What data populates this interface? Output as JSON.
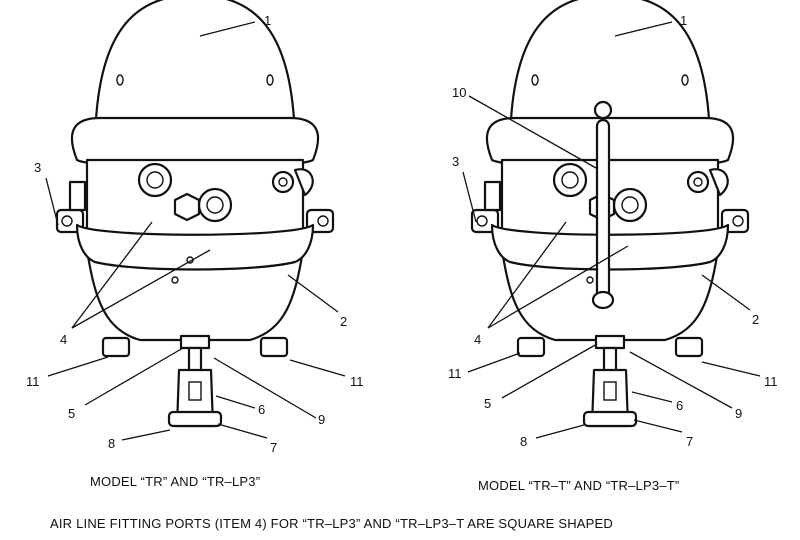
{
  "figure": {
    "left": {
      "model_caption": "MODEL “TR” AND “TR–LP3”",
      "callouts": {
        "c1": "1",
        "c2": "2",
        "c3": "3",
        "c4": "4",
        "c5": "5",
        "c6": "6",
        "c7": "7",
        "c8": "8",
        "c9": "9",
        "c11a": "11",
        "c11b": "11"
      }
    },
    "right": {
      "model_caption": "MODEL “TR–T” AND “TR–LP3–T”",
      "callouts": {
        "c1": "1",
        "c2": "2",
        "c3": "3",
        "c4": "4",
        "c5": "5",
        "c6": "6",
        "c7": "7",
        "c8": "8",
        "c9": "9",
        "c10": "10",
        "c11a": "11",
        "c11b": "11"
      }
    },
    "footnote": "AIR LINE FITTING PORTS (ITEM 4) FOR “TR–LP3” AND “TR–LP3–T ARE SQUARE SHAPED"
  }
}
